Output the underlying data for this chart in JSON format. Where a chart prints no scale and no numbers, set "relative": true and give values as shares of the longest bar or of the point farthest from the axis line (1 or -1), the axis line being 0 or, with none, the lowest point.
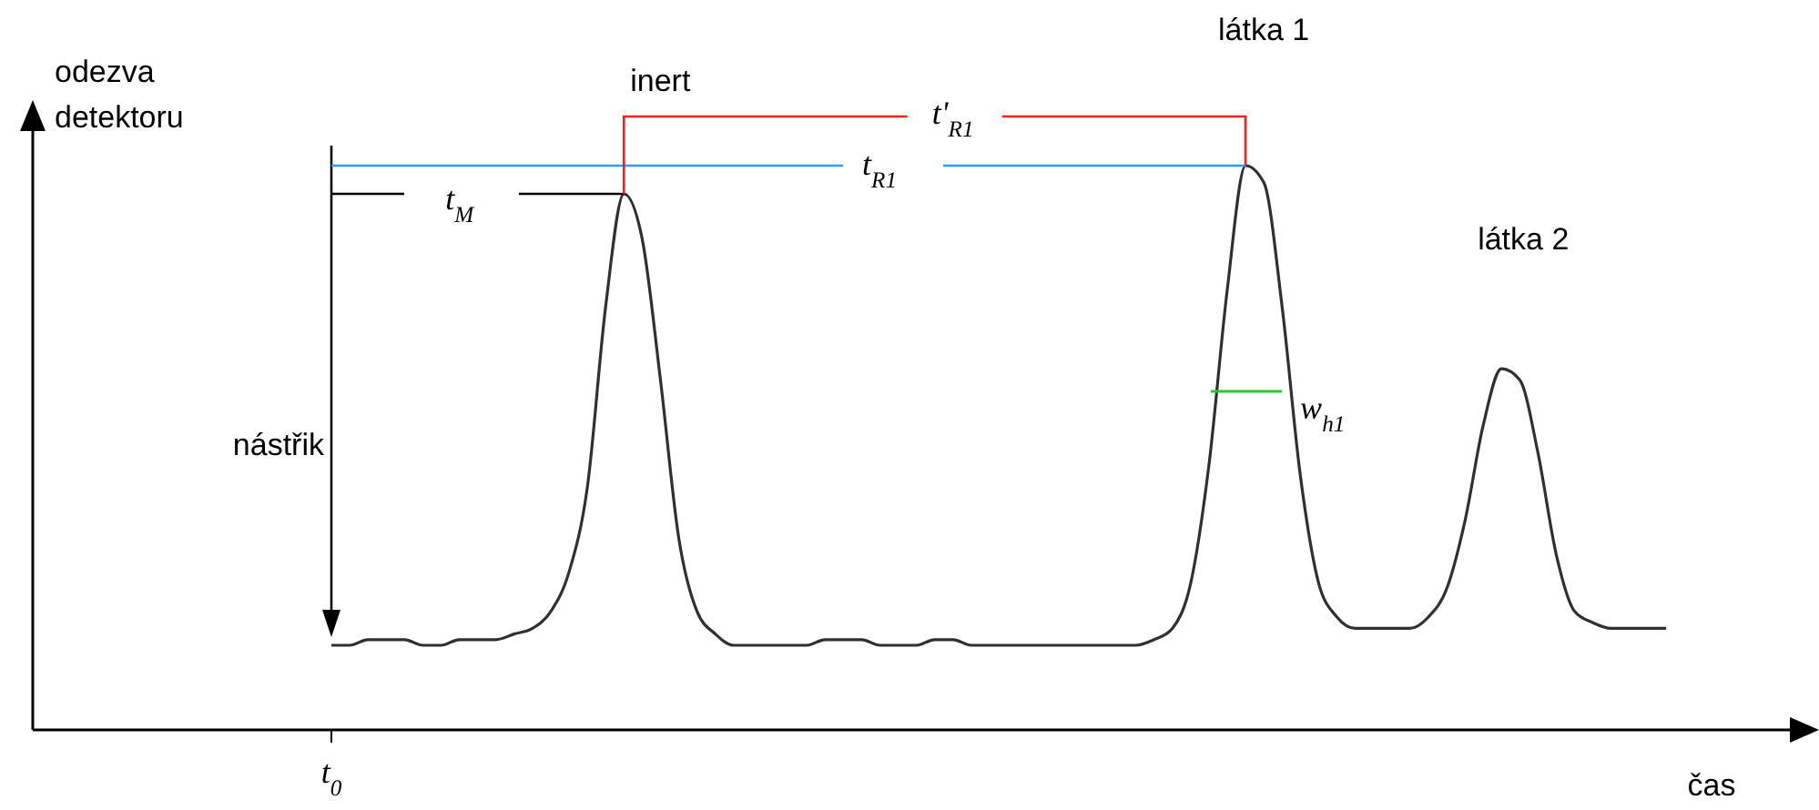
{
  "chart_data": {
    "type": "line",
    "relative": true,
    "xlabel": "čas",
    "ylabel": "odezva detektoru",
    "line_style": "solid",
    "categories": [
      null,
      null,
      null,
      null,
      null,
      null,
      null,
      null,
      null,
      null,
      null,
      null,
      null,
      null,
      null,
      null,
      null,
      null,
      null,
      null,
      null,
      null,
      null,
      null,
      null,
      null,
      null,
      null,
      null,
      null,
      null,
      null,
      null,
      null,
      null,
      null,
      null,
      null,
      null,
      null,
      null,
      null,
      null,
      null,
      null,
      null,
      null,
      null,
      null,
      null,
      null,
      null,
      null,
      null,
      null,
      null,
      null,
      null,
      null,
      null,
      null,
      null,
      null,
      null,
      null,
      null,
      null,
      null,
      null,
      null,
      null,
      null,
      null,
      null
    ],
    "series": [
      {
        "color": "#303030",
        "values": [
          0.15,
          0.15,
          0.16,
          0.16,
          0.16,
          0.15,
          0.15,
          0.16,
          0.16,
          0.16,
          0.17,
          0.18,
          0.21,
          0.28,
          0.43,
          0.75,
          0.95,
          0.87,
          0.62,
          0.34,
          0.21,
          0.17,
          0.15,
          0.15,
          0.15,
          0.15,
          0.15,
          0.16,
          0.16,
          0.16,
          0.15,
          0.15,
          0.15,
          0.16,
          0.16,
          0.15,
          0.15,
          0.15,
          0.15,
          0.15,
          0.15,
          0.15,
          0.15,
          0.15,
          0.15,
          0.16,
          0.18,
          0.26,
          0.47,
          0.78,
          1,
          0.97,
          0.75,
          0.45,
          0.26,
          0.2,
          0.18,
          0.18,
          0.18,
          0.18,
          0.2,
          0.25,
          0.37,
          0.54,
          0.64,
          0.62,
          0.49,
          0.31,
          0.21,
          0.19,
          0.18,
          0.18,
          0.18,
          0.18
        ]
      }
    ],
    "annotations": [
      "inert",
      "látka 1",
      "látka 2",
      "nástřik",
      "t$_{M}$",
      "t$_{R1}$",
      "t'$_{R1}$",
      "w$_{h1}$",
      "t$_{0}$"
    ]
  }
}
